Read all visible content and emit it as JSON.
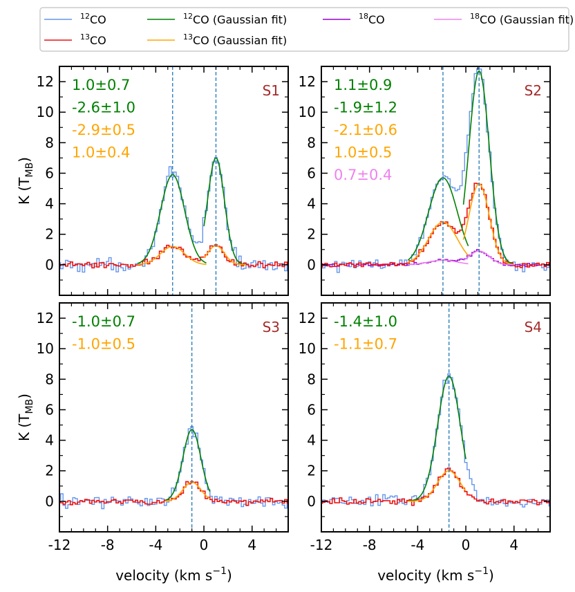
{
  "chart_data": {
    "type": "line",
    "legend_position": "top",
    "legend": [
      {
        "id": "co12",
        "sup": "12",
        "name": "CO",
        "suffix": "",
        "color": "#6495ed"
      },
      {
        "id": "co12fit",
        "sup": "12",
        "name": "CO",
        "suffix": " (Gaussian fit)",
        "color": "#008000"
      },
      {
        "id": "co18",
        "sup": "18",
        "name": "CO",
        "suffix": "",
        "color": "#9400d3"
      },
      {
        "id": "co18fit",
        "sup": "18",
        "name": "CO",
        "suffix": " (Gaussian fit)",
        "color": "#ee82ee"
      },
      {
        "id": "co13",
        "sup": "13",
        "name": "CO",
        "suffix": "",
        "color": "#ee1111"
      },
      {
        "id": "co13fit",
        "sup": "13",
        "name": "CO",
        "suffix": " (Gaussian fit)",
        "color": "#ffa500"
      }
    ],
    "xlabel": "velocity (km s",
    "xlabel_sup": "−1",
    "xlabel_close": ")",
    "ylabel": "K (T",
    "ylabel_sub": "MB",
    "ylabel_close": ")",
    "xlim": [
      -12,
      7
    ],
    "ylim": [
      -2,
      13
    ],
    "xticks": [
      -12,
      -8,
      -4,
      0,
      4
    ],
    "yticks": [
      0,
      2,
      4,
      6,
      8,
      10,
      12
    ],
    "panels": [
      {
        "id": "S1",
        "label": "S1",
        "annotations": [
          {
            "text": "1.0±0.7",
            "color": "#008000"
          },
          {
            "text": "-2.6±1.0",
            "color": "#008000"
          },
          {
            "text": "-2.9±0.5",
            "color": "#ffa500"
          },
          {
            "text": "1.0±0.4",
            "color": "#ffa500"
          }
        ],
        "vlines": [
          -2.6,
          1.0
        ],
        "components": [
          {
            "amp12": 5.9,
            "amp13": 1.2,
            "amp18": 0,
            "center": -2.6,
            "sigma": 1.0,
            "range": [
              -5.5,
              0.2
            ]
          },
          {
            "amp12": 7.0,
            "amp13": 1.25,
            "amp18": 0,
            "center": 1.0,
            "sigma": 0.7,
            "range": [
              0.0,
              3.5
            ]
          }
        ],
        "noise12": 0.45,
        "noise13": 0.2,
        "noise18": 0,
        "show18": false,
        "show_xlabel": false,
        "show_ylabel": true,
        "show_xticklabels": false,
        "show_yticklabels": true
      },
      {
        "id": "S2",
        "label": "S2",
        "annotations": [
          {
            "text": "1.1±0.9",
            "color": "#008000"
          },
          {
            "text": "-1.9±1.2",
            "color": "#008000"
          },
          {
            "text": "-2.1±0.6",
            "color": "#ffa500"
          },
          {
            "text": "1.0±0.5",
            "color": "#ffa500"
          },
          {
            "text": "0.7±0.4",
            "color": "#ee82ee"
          }
        ],
        "vlines": [
          -1.9,
          1.1
        ],
        "components": [
          {
            "amp12": 5.7,
            "amp13": 2.8,
            "amp18": 0.3,
            "center": -1.9,
            "sigma": 1.2,
            "range": [
              -4.8,
              0.2
            ]
          },
          {
            "amp12": 12.7,
            "amp13": 5.3,
            "amp18": 0.9,
            "center": 1.1,
            "sigma": 0.85,
            "range": [
              -0.2,
              4.0
            ]
          }
        ],
        "noise12": 0.35,
        "noise13": 0.2,
        "noise18": 0.12,
        "show18": true,
        "show_xlabel": false,
        "show_ylabel": false,
        "show_xticklabels": false,
        "show_yticklabels": true
      },
      {
        "id": "S3",
        "label": "S3",
        "annotations": [
          {
            "text": "-1.0±0.7",
            "color": "#008000"
          },
          {
            "text": "-1.0±0.5",
            "color": "#ffa500"
          }
        ],
        "vlines": [
          -1.0
        ],
        "components": [
          {
            "amp12": 4.7,
            "amp13": 1.25,
            "amp18": 0,
            "center": -1.0,
            "sigma": 0.75,
            "range": [
              -3.2,
              0.5
            ]
          }
        ],
        "noise12": 0.45,
        "noise13": 0.2,
        "noise18": 0,
        "show18": false,
        "show_xlabel": true,
        "show_ylabel": true,
        "show_xticklabels": true,
        "show_yticklabels": true
      },
      {
        "id": "S4",
        "label": "S4",
        "annotations": [
          {
            "text": "-1.4±1.0",
            "color": "#008000"
          },
          {
            "text": "-1.1±0.7",
            "color": "#ffa500"
          }
        ],
        "vlines": [
          -1.4
        ],
        "components": [
          {
            "amp12": 8.2,
            "amp13": 2.0,
            "amp18": 0,
            "center": -1.4,
            "sigma": 0.95,
            "range": [
              -4.8,
              0.0
            ]
          }
        ],
        "noise12": 0.4,
        "noise13": 0.2,
        "noise18": 0,
        "show18": false,
        "show_xlabel": true,
        "show_ylabel": false,
        "show_xticklabels": true,
        "show_yticklabels": true
      }
    ]
  }
}
